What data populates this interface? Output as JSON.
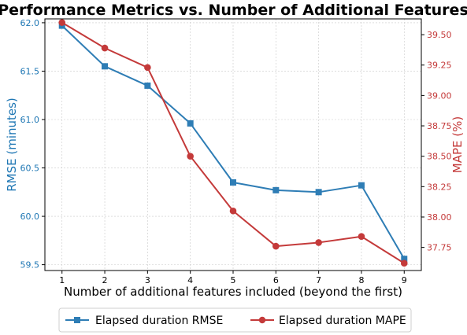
{
  "chart_data": {
    "type": "line",
    "title": "Performance Metrics vs. Number of Additional Features",
    "xlabel": "Number of additional features included (beyond the first)",
    "x": [
      1,
      2,
      3,
      4,
      5,
      6,
      7,
      8,
      9
    ],
    "grid": true,
    "legend_position": "bottom-center",
    "y_left": {
      "label": "RMSE (minutes)",
      "lim": [
        59.44,
        62.04
      ],
      "ticks": [
        59.5,
        60.0,
        60.5,
        61.0,
        61.5,
        62.0
      ],
      "tick_labels": [
        "59.5",
        "60.0",
        "60.5",
        "61.0",
        "61.5",
        "62.0"
      ],
      "color": "#1f77b4"
    },
    "y_right": {
      "label": "MAPE (%)",
      "lim": [
        37.56,
        39.63
      ],
      "ticks": [
        37.75,
        38.0,
        38.25,
        38.5,
        38.75,
        39.0,
        39.25,
        39.5
      ],
      "tick_labels": [
        "37.75",
        "38.00",
        "38.25",
        "38.50",
        "38.75",
        "39.00",
        "39.25",
        "39.50"
      ],
      "color": "#c43a3a"
    },
    "series": [
      {
        "name": "Elapsed duration RMSE",
        "axis": "left",
        "marker": "square",
        "color": "#2e7db5",
        "values": [
          61.97,
          61.55,
          61.35,
          60.96,
          60.35,
          60.27,
          60.25,
          60.32,
          59.56
        ]
      },
      {
        "name": "Elapsed duration MAPE",
        "axis": "right",
        "marker": "circle",
        "color": "#c43a3a",
        "values": [
          39.6,
          39.39,
          39.23,
          38.5,
          38.05,
          37.76,
          37.79,
          37.84,
          37.62
        ]
      }
    ]
  }
}
